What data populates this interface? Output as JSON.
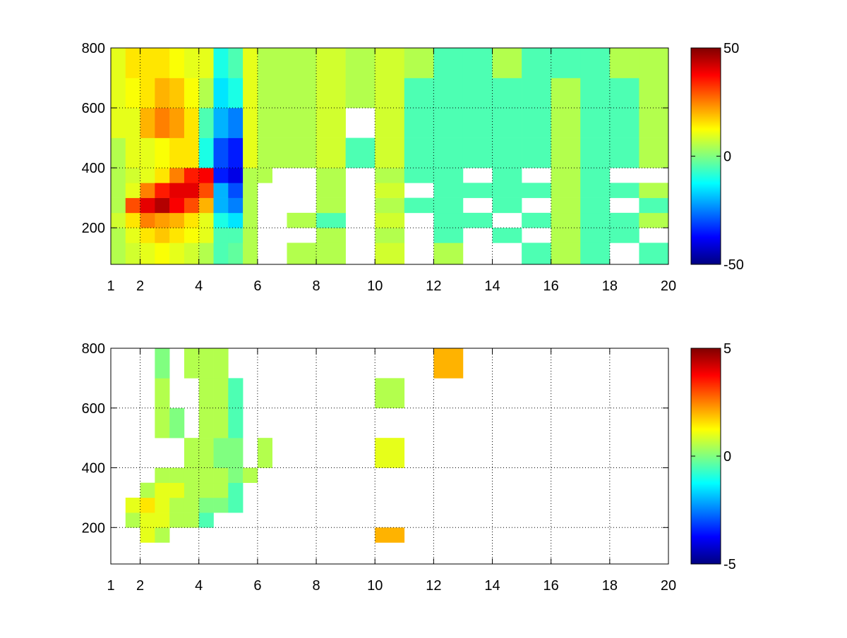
{
  "chart_data": [
    {
      "type": "heatmap",
      "x_edges": [
        1,
        1.5,
        2,
        2.5,
        3,
        3.5,
        4,
        4.5,
        5,
        5.5,
        6,
        6.5,
        7,
        8,
        9,
        10,
        11,
        12,
        13,
        14,
        15,
        16,
        17,
        18,
        19,
        20
      ],
      "y_edges": [
        78,
        150,
        200,
        250,
        300,
        350,
        400,
        500,
        600,
        700,
        800
      ],
      "z": [
        [
          5,
          8,
          10,
          12,
          10,
          8,
          5,
          -5,
          -3,
          5,
          null,
          null,
          5,
          5,
          null,
          8,
          null,
          5,
          null,
          null,
          -5,
          5,
          -5,
          null,
          -5
        ],
        [
          5,
          10,
          15,
          18,
          15,
          12,
          10,
          -5,
          -5,
          5,
          null,
          null,
          null,
          5,
          null,
          5,
          null,
          -5,
          null,
          -5,
          null,
          5,
          -5,
          -5,
          null
        ],
        [
          8,
          15,
          25,
          22,
          20,
          15,
          10,
          -10,
          -15,
          5,
          null,
          null,
          5,
          -5,
          null,
          8,
          null,
          -5,
          -5,
          null,
          -5,
          5,
          -5,
          -5,
          5
        ],
        [
          5,
          30,
          40,
          45,
          38,
          30,
          20,
          -20,
          -25,
          5,
          null,
          null,
          null,
          5,
          null,
          5,
          -5,
          -5,
          null,
          -5,
          null,
          5,
          -5,
          null,
          -5
        ],
        [
          5,
          10,
          25,
          35,
          40,
          40,
          30,
          -20,
          -30,
          5,
          null,
          null,
          null,
          5,
          null,
          8,
          null,
          -5,
          -5,
          -5,
          -5,
          5,
          -5,
          -5,
          5
        ],
        [
          5,
          8,
          10,
          15,
          25,
          35,
          38,
          -35,
          -40,
          5,
          5,
          null,
          null,
          5,
          null,
          5,
          -5,
          -5,
          null,
          -5,
          null,
          5,
          -5,
          null,
          null
        ],
        [
          5,
          10,
          10,
          12,
          15,
          15,
          -10,
          -30,
          -35,
          10,
          5,
          5,
          5,
          8,
          -5,
          8,
          -5,
          -5,
          -5,
          -5,
          -5,
          5,
          -5,
          -5,
          5
        ],
        [
          10,
          10,
          20,
          25,
          22,
          15,
          -5,
          -20,
          -25,
          10,
          5,
          5,
          5,
          8,
          null,
          8,
          -5,
          -5,
          -5,
          -5,
          -5,
          5,
          -5,
          -5,
          5
        ],
        [
          10,
          12,
          15,
          20,
          18,
          12,
          5,
          -15,
          -10,
          10,
          5,
          5,
          5,
          8,
          5,
          8,
          -5,
          -5,
          -5,
          -5,
          -5,
          5,
          -5,
          -5,
          5
        ],
        [
          10,
          15,
          15,
          15,
          12,
          10,
          10,
          -10,
          -5,
          10,
          5,
          5,
          5,
          8,
          5,
          8,
          5,
          -5,
          -5,
          5,
          -5,
          -5,
          -5,
          5,
          5
        ]
      ],
      "xlim": [
        1,
        20
      ],
      "ylim": [
        78,
        800
      ],
      "xticks": [
        1,
        2,
        4,
        6,
        8,
        10,
        12,
        14,
        16,
        18,
        20
      ],
      "yticks": [
        200,
        400,
        600,
        800
      ],
      "clim": [
        -50,
        50
      ],
      "cticks": [
        -50,
        0,
        50
      ],
      "colormap": [
        "#000080",
        "#0000ff",
        "#0080ff",
        "#00ffff",
        "#80ff80",
        "#ffff00",
        "#ff8000",
        "#ff0000",
        "#800000"
      ],
      "grid": true
    },
    {
      "type": "heatmap",
      "x_edges": [
        1,
        1.5,
        2,
        2.5,
        3,
        3.5,
        4,
        4.5,
        5,
        5.5,
        6,
        6.5,
        7,
        8,
        9,
        10,
        11,
        12,
        13,
        14,
        15,
        16,
        17,
        18,
        19,
        20
      ],
      "y_edges": [
        78,
        150,
        200,
        250,
        300,
        350,
        400,
        500,
        600,
        700,
        800
      ],
      "z": [
        [
          null,
          null,
          null,
          null,
          null,
          null,
          null,
          null,
          null,
          null,
          null,
          null,
          null,
          null,
          null,
          null,
          null,
          null,
          null,
          null,
          null,
          null,
          null,
          null,
          null
        ],
        [
          null,
          null,
          1,
          0.5,
          null,
          null,
          null,
          null,
          null,
          null,
          null,
          null,
          null,
          null,
          null,
          2,
          null,
          null,
          null,
          null,
          null,
          null,
          null,
          null,
          null
        ],
        [
          null,
          0.5,
          1,
          1,
          0.5,
          0.5,
          -0.5,
          null,
          null,
          null,
          null,
          null,
          null,
          null,
          null,
          null,
          null,
          null,
          null,
          null,
          null,
          null,
          null,
          null,
          null
        ],
        [
          null,
          1,
          1.5,
          1,
          0.5,
          0.5,
          0,
          0,
          -0.5,
          null,
          null,
          null,
          null,
          null,
          null,
          null,
          null,
          null,
          null,
          null,
          null,
          null,
          null,
          null,
          null
        ],
        [
          null,
          null,
          0.5,
          1,
          1,
          0.5,
          0.5,
          0.5,
          -0.5,
          null,
          null,
          null,
          null,
          null,
          null,
          null,
          null,
          null,
          null,
          null,
          null,
          null,
          null,
          null,
          null
        ],
        [
          null,
          null,
          null,
          0.5,
          0.5,
          0.5,
          0.5,
          0.5,
          0,
          0.5,
          null,
          null,
          null,
          null,
          null,
          null,
          null,
          null,
          null,
          null,
          null,
          null,
          null,
          null,
          null
        ],
        [
          null,
          null,
          null,
          null,
          null,
          0.5,
          0.5,
          0,
          0,
          null,
          0.5,
          null,
          null,
          null,
          null,
          1,
          null,
          null,
          null,
          null,
          null,
          null,
          null,
          null,
          null
        ],
        [
          null,
          null,
          null,
          0.5,
          0,
          null,
          0.5,
          0.5,
          -0.5,
          null,
          null,
          null,
          null,
          null,
          null,
          null,
          null,
          null,
          null,
          null,
          null,
          null,
          null,
          null,
          null
        ],
        [
          null,
          null,
          null,
          0.5,
          null,
          null,
          0.5,
          0.5,
          -0.5,
          null,
          null,
          null,
          null,
          null,
          null,
          0.5,
          null,
          null,
          null,
          null,
          null,
          null,
          null,
          null,
          null
        ],
        [
          null,
          null,
          null,
          0,
          null,
          0.5,
          0.5,
          0.5,
          null,
          null,
          null,
          null,
          null,
          null,
          null,
          null,
          null,
          2,
          null,
          null,
          null,
          null,
          null,
          null,
          null
        ]
      ],
      "xlim": [
        1,
        20
      ],
      "ylim": [
        78,
        800
      ],
      "xticks": [
        1,
        2,
        4,
        6,
        8,
        10,
        12,
        14,
        16,
        18,
        20
      ],
      "yticks": [
        200,
        400,
        600,
        800
      ],
      "clim": [
        -5,
        5
      ],
      "cticks": [
        -5,
        0,
        5
      ],
      "colormap": [
        "#000080",
        "#0000ff",
        "#0080ff",
        "#00ffff",
        "#80ff80",
        "#ffff00",
        "#ff8000",
        "#ff0000",
        "#800000"
      ],
      "grid": true
    }
  ]
}
